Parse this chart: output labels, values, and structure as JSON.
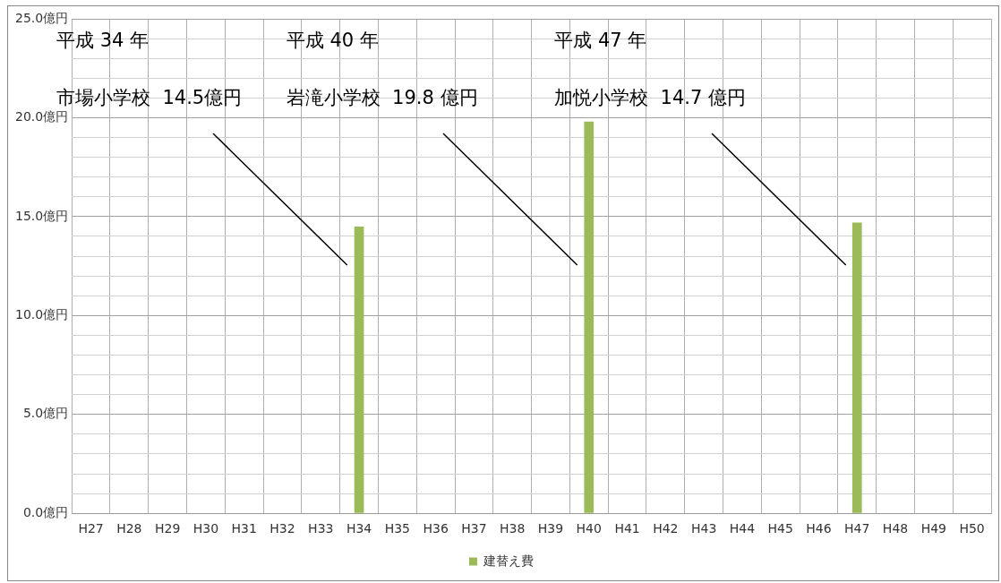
{
  "chart_data": {
    "type": "bar",
    "categories": [
      "H27",
      "H28",
      "H29",
      "H30",
      "H31",
      "H32",
      "H33",
      "H34",
      "H35",
      "H36",
      "H37",
      "H38",
      "H39",
      "H40",
      "H41",
      "H42",
      "H43",
      "H44",
      "H45",
      "H46",
      "H47",
      "H48",
      "H49",
      "H50"
    ],
    "series": [
      {
        "name": "建替え費",
        "color": "#9bbb59",
        "values": [
          null,
          null,
          null,
          null,
          null,
          null,
          null,
          14.5,
          null,
          null,
          null,
          null,
          null,
          19.8,
          null,
          null,
          null,
          null,
          null,
          null,
          14.7,
          null,
          null,
          null
        ]
      }
    ],
    "ylim": [
      0,
      25
    ],
    "yticks": [
      {
        "value": 0,
        "label": "0.0億円"
      },
      {
        "value": 1,
        "label": null
      },
      {
        "value": 2,
        "label": null
      },
      {
        "value": 3,
        "label": null
      },
      {
        "value": 4,
        "label": null
      },
      {
        "value": 5,
        "label": "5.0億円"
      },
      {
        "value": 6,
        "label": null
      },
      {
        "value": 7,
        "label": null
      },
      {
        "value": 8,
        "label": null
      },
      {
        "value": 9,
        "label": null
      },
      {
        "value": 10,
        "label": "10.0億円"
      },
      {
        "value": 11,
        "label": null
      },
      {
        "value": 12,
        "label": null
      },
      {
        "value": 13,
        "label": null
      },
      {
        "value": 14,
        "label": null
      },
      {
        "value": 15,
        "label": "15.0億円"
      },
      {
        "value": 16,
        "label": null
      },
      {
        "value": 17,
        "label": null
      },
      {
        "value": 18,
        "label": null
      },
      {
        "value": 19,
        "label": null
      },
      {
        "value": 20,
        "label": "20.0億円"
      },
      {
        "value": 21,
        "label": null
      },
      {
        "value": 22,
        "label": null
      },
      {
        "value": 23,
        "label": null
      },
      {
        "value": 24,
        "label": null
      },
      {
        "value": 25,
        "label": "25.0億円"
      }
    ],
    "grid": true,
    "legend": "bottom",
    "annotations": [
      "平成 34 年",
      "市場小学校  14.5億円",
      "平成 40 年",
      "岩滝小学校  19.8 億円",
      "平成 47 年",
      "加悦小学校  14.7 億円"
    ]
  }
}
